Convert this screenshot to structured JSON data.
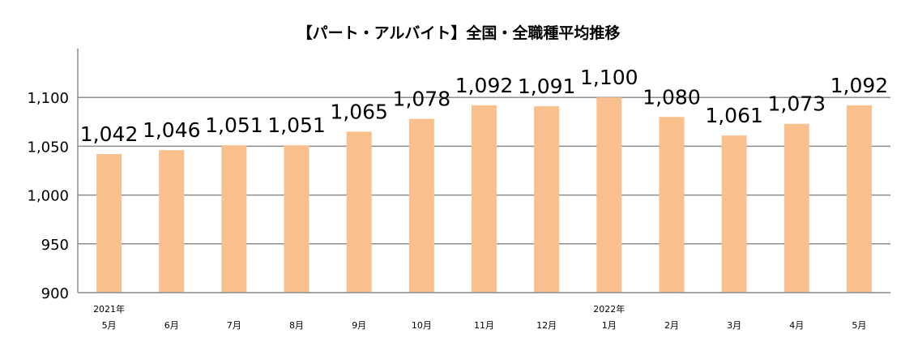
{
  "chart_data": {
    "type": "bar",
    "title": "【パート・アルバイト】全国・全職種平均推移",
    "categories": [
      "5月",
      "6月",
      "7月",
      "8月",
      "9月",
      "10月",
      "11月",
      "12月",
      "1月",
      "2月",
      "3月",
      "4月",
      "5月"
    ],
    "year_labels": [
      "2021年",
      "",
      "",
      "",
      "",
      "",
      "",
      "",
      "2022年",
      "",
      "",
      "",
      ""
    ],
    "values": [
      1042,
      1046,
      1051,
      1051,
      1065,
      1078,
      1092,
      1091,
      1100,
      1080,
      1061,
      1073,
      1092
    ],
    "data_labels": [
      "1,042",
      "1,046",
      "1,051",
      "1,051",
      "1,065",
      "1,078",
      "1,092",
      "1,091",
      "1,100",
      "1,080",
      "1,061",
      "1,073",
      "1,092"
    ],
    "ylim": [
      900,
      1150
    ],
    "yticks": [
      900,
      950,
      1000,
      1050,
      1100
    ],
    "ytick_labels": [
      "900",
      "950",
      "1,000",
      "1,050",
      "1,100"
    ],
    "grid": true,
    "bar_color": "#F9C08E",
    "xlabel": "",
    "ylabel": ""
  }
}
